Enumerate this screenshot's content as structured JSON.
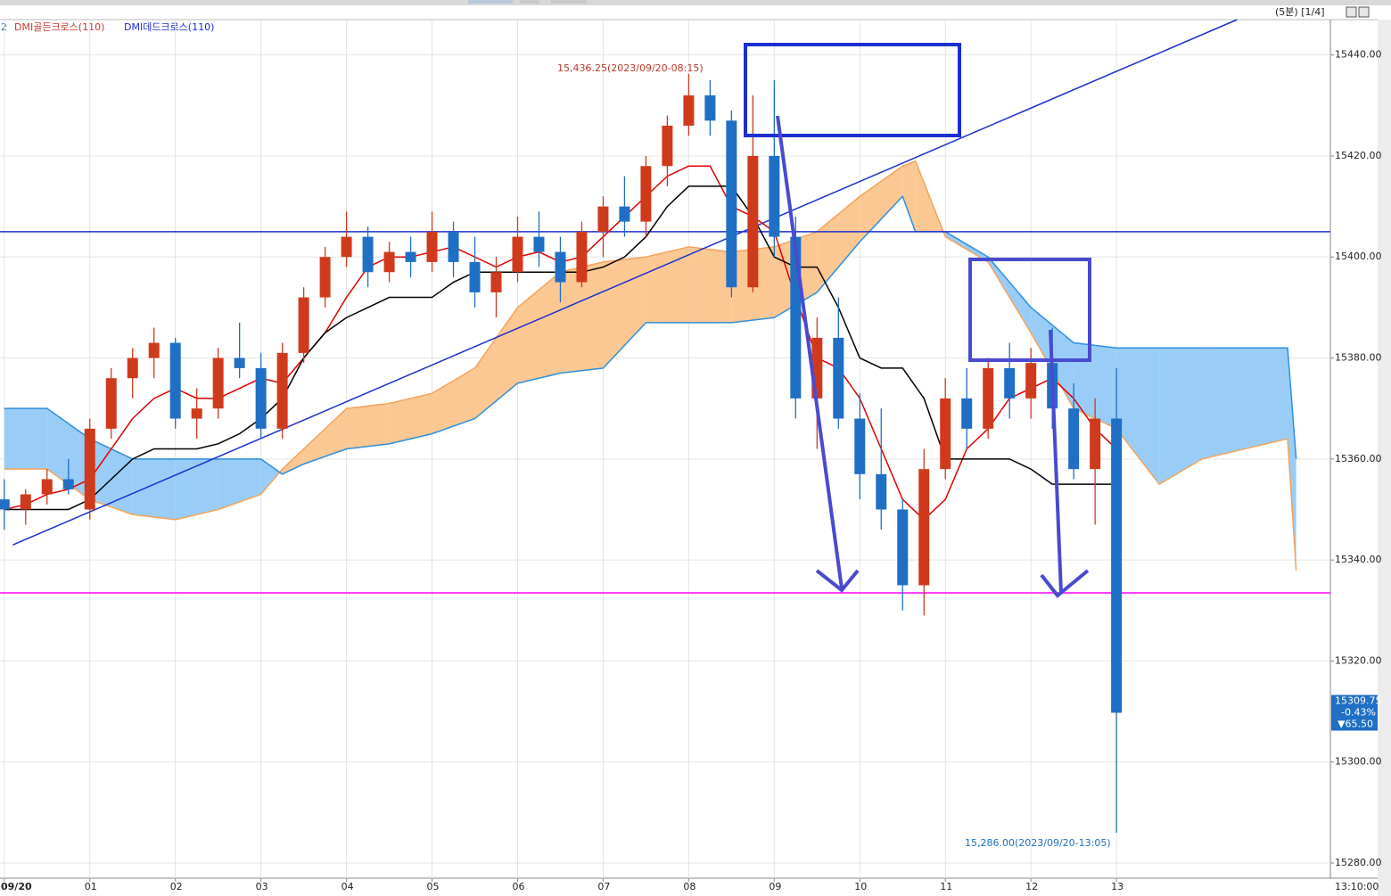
{
  "chart_data": {
    "type": "candlestick",
    "period_label": "(5분) [1/4]",
    "legend": [
      "2",
      "DMI골든크로스(110)",
      "DMI데드크로스(110)"
    ],
    "cursor_time": "13:10:00",
    "xlim": [
      -0.05,
      15.5
    ],
    "ylim": [
      15277,
      15447
    ],
    "grid": true,
    "xticks": [
      {
        "value": 0,
        "label": "09/20"
      },
      {
        "value": 1,
        "label": "01"
      },
      {
        "value": 2,
        "label": "02"
      },
      {
        "value": 3,
        "label": "03"
      },
      {
        "value": 4,
        "label": "04"
      },
      {
        "value": 5,
        "label": "05"
      },
      {
        "value": 6,
        "label": "06"
      },
      {
        "value": 7,
        "label": "07"
      },
      {
        "value": 8,
        "label": "08"
      },
      {
        "value": 9,
        "label": "09"
      },
      {
        "value": 10,
        "label": "10"
      },
      {
        "value": 11,
        "label": "11"
      },
      {
        "value": 12,
        "label": "12"
      },
      {
        "value": 13,
        "label": "13"
      }
    ],
    "yticks": [
      {
        "value": 15280,
        "label": "15280.00"
      },
      {
        "value": 15300,
        "label": "15300.00"
      },
      {
        "value": 15320,
        "label": "15320.00"
      },
      {
        "value": 15340,
        "label": "15340.00"
      },
      {
        "value": 15360,
        "label": "15360.00"
      },
      {
        "value": 15380,
        "label": "15380.00"
      },
      {
        "value": 15400,
        "label": "15400.00"
      },
      {
        "value": 15420,
        "label": "15420.00"
      },
      {
        "value": 15440,
        "label": "15440.00"
      }
    ],
    "up_color": "#d03a1c",
    "down_color": "#1f6fc4",
    "x": [
      0,
      0.25,
      0.5,
      0.75,
      1,
      1.25,
      1.5,
      1.75,
      2,
      2.25,
      2.5,
      2.75,
      3,
      3.25,
      3.5,
      3.75,
      4,
      4.25,
      4.5,
      4.75,
      5,
      5.25,
      5.5,
      5.75,
      6,
      6.25,
      6.5,
      6.75,
      7,
      7.25,
      7.5,
      7.75,
      8,
      8.25,
      8.5,
      8.75,
      9,
      9.25,
      9.5,
      9.75,
      10,
      10.25,
      10.5,
      10.75,
      11,
      11.25,
      11.5,
      11.75,
      12,
      12.25,
      12.5,
      12.75,
      13
    ],
    "ohlc": [
      [
        15352,
        15356,
        15346,
        15350
      ],
      [
        15350,
        15354,
        15347,
        15353
      ],
      [
        15353,
        15358,
        15351,
        15356
      ],
      [
        15356,
        15360,
        15353,
        15354
      ],
      [
        15350,
        15368,
        15348,
        15366
      ],
      [
        15366,
        15378,
        15364,
        15376
      ],
      [
        15376,
        15382,
        15372,
        15380
      ],
      [
        15380,
        15386,
        15376,
        15383
      ],
      [
        15383,
        15384,
        15366,
        15368
      ],
      [
        15368,
        15374,
        15364,
        15370
      ],
      [
        15370,
        15382,
        15368,
        15380
      ],
      [
        15380,
        15387,
        15376,
        15378
      ],
      [
        15378,
        15381,
        15364,
        15366
      ],
      [
        15366,
        15383,
        15364,
        15381
      ],
      [
        15381,
        15394,
        15379,
        15392
      ],
      [
        15392,
        15402,
        15390,
        15400
      ],
      [
        15400,
        15409,
        15398,
        15404
      ],
      [
        15404,
        15406,
        15394,
        15397
      ],
      [
        15397,
        15403,
        15395,
        15401
      ],
      [
        15401,
        15404,
        15396,
        15399
      ],
      [
        15399,
        15409,
        15397,
        15405
      ],
      [
        15405,
        15407,
        15396,
        15399
      ],
      [
        15399,
        15404,
        15390,
        15393
      ],
      [
        15393,
        15400,
        15388,
        15397
      ],
      [
        15397,
        15408,
        15395,
        15404
      ],
      [
        15404,
        15409,
        15398,
        15401
      ],
      [
        15401,
        15404,
        15391,
        15395
      ],
      [
        15395,
        15407,
        15394,
        15405
      ],
      [
        15405,
        15412,
        15400,
        15410
      ],
      [
        15410,
        15416,
        15404,
        15407
      ],
      [
        15407,
        15420,
        15404,
        15418
      ],
      [
        15418,
        15428,
        15414,
        15426
      ],
      [
        15426,
        15436.25,
        15424,
        15432
      ],
      [
        15432,
        15435,
        15424,
        15427
      ],
      [
        15427,
        15429,
        15392,
        15394
      ],
      [
        15394,
        15432,
        15393,
        15420
      ],
      [
        15420,
        15435,
        15400,
        15404
      ],
      [
        15404,
        15408,
        15368,
        15372
      ],
      [
        15372,
        15388,
        15362,
        15384
      ],
      [
        15384,
        15392,
        15366,
        15368
      ],
      [
        15368,
        15373,
        15352,
        15357
      ],
      [
        15357,
        15370,
        15346,
        15350
      ],
      [
        15350,
        15352,
        15330,
        15335
      ],
      [
        15335,
        15362,
        15329,
        15358
      ],
      [
        15358,
        15376,
        15356,
        15372
      ],
      [
        15372,
        15378,
        15362,
        15366
      ],
      [
        15366,
        15380,
        15364,
        15378
      ],
      [
        15378,
        15383,
        15368,
        15372
      ],
      [
        15372,
        15382,
        15368,
        15379
      ],
      [
        15379,
        15386,
        15366,
        15370
      ],
      [
        15370,
        15375,
        15356,
        15358
      ],
      [
        15358,
        15372,
        15347,
        15368
      ],
      [
        15368,
        15378,
        15286,
        15309.75
      ]
    ],
    "series": [
      {
        "color": "#e00000",
        "values": [
          15350,
          15351,
          15353,
          15354,
          15356,
          15362,
          15368,
          15372,
          15374,
          15372,
          15372,
          15374,
          15376,
          15375,
          15380,
          15385,
          15392,
          15398,
          15400,
          15400,
          15401,
          15402,
          15400,
          15398,
          15400,
          15401,
          15399,
          15400,
          15404,
          15408,
          15412,
          15416,
          15418,
          15418,
          15410,
          15408,
          15405,
          15392,
          15380,
          15378,
          15372,
          15362,
          15352,
          15348,
          15352,
          15362,
          15366,
          15372,
          15374,
          15376,
          15372,
          15366,
          15362
        ]
      },
      {
        "color": "#000000",
        "values": [
          15350,
          15350,
          15350,
          15350,
          15352,
          15356,
          15360,
          15362,
          15362,
          15362,
          15363,
          15365,
          15368,
          15372,
          15380,
          15385,
          15388,
          15390,
          15392,
          15392,
          15392,
          15395,
          15397,
          15397,
          15397,
          15397,
          15397,
          15397,
          15398,
          15400,
          15404,
          15410,
          15414,
          15414,
          15414,
          15408,
          15400,
          15398,
          15398,
          15390,
          15380,
          15378,
          15378,
          15372,
          15360,
          15360,
          15360,
          15360,
          15358,
          15355,
          15355,
          15355,
          15355
        ]
      }
    ],
    "cloud": {
      "x": [
        0,
        0.5,
        1,
        1.5,
        2,
        2.5,
        3,
        3.25,
        3.5,
        4,
        4.5,
        5,
        5.5,
        6,
        6.5,
        7,
        7.5,
        8,
        8.5,
        9,
        9.5,
        10,
        10.5,
        10.65,
        11,
        11.5,
        12,
        12.5,
        13,
        13.5,
        14,
        14.5,
        15,
        15.1
      ],
      "span_a": {
        "color": "#f5a35a",
        "fill": "#fbc894",
        "values": [
          15358,
          15358,
          15352,
          15349,
          15348,
          15350,
          15353,
          15358,
          15362,
          15370,
          15371,
          15373,
          15378,
          15390,
          15397,
          15399,
          15400,
          15402,
          15401,
          15402,
          15405,
          15412,
          15418,
          15419,
          15404,
          15399,
          15385,
          15370,
          15366,
          15355,
          15360,
          15362,
          15364,
          15338
        ]
      },
      "span_b": {
        "color": "#2e8fe0",
        "fill": "#99cdf7",
        "values": [
          15370,
          15370,
          15364,
          15360,
          15360,
          15360,
          15360,
          15357,
          15359,
          15362,
          15363,
          15365,
          15368,
          15375,
          15377,
          15378,
          15387,
          15387,
          15387,
          15388,
          15393,
          15403,
          15412,
          15405,
          15405,
          15400,
          15390,
          15383,
          15382,
          15382,
          15382,
          15382,
          15382,
          15360
        ]
      }
    },
    "hlines": [
      {
        "value": 15405,
        "color": "#1c2fd0"
      },
      {
        "value": 15333.5,
        "color": "#ff00ff"
      }
    ],
    "trendline": {
      "color": "#1c2fd0",
      "x": [
        0.1,
        14.41
      ],
      "y": [
        15343,
        15447
      ]
    },
    "annotations": [
      {
        "text": "15,436.25(2023/09/20-08:15)",
        "color": "#c0392b"
      },
      {
        "text": "15,286.00(2023/09/20-13:05)",
        "color": "#1f6fc4"
      }
    ],
    "last_price": {
      "price": "15309.75",
      "change_pct": "-0.43%",
      "change": "▼65.50"
    }
  }
}
